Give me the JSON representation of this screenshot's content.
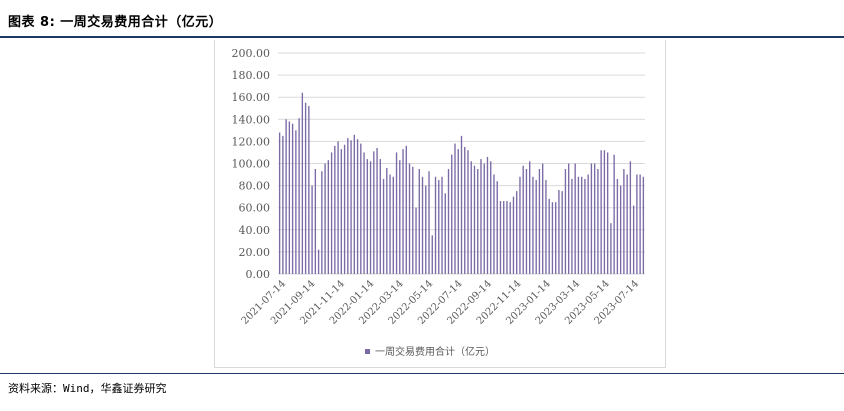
{
  "figure": {
    "title": "图表 8: 一周交易费用合计（亿元）",
    "source": "资料来源：Wind，华鑫证券研究"
  },
  "colors": {
    "bar": "#7b6aa6",
    "rule": "#1f3864",
    "grid": "#d9d9d9",
    "text": "#595959"
  },
  "chart_data": {
    "type": "bar",
    "title": "",
    "xlabel": "",
    "ylabel": "",
    "ylim": [
      0,
      200
    ],
    "y_ticks": [
      "200.00",
      "180.00",
      "160.00",
      "140.00",
      "120.00",
      "100.00",
      "80.00",
      "60.00",
      "40.00",
      "20.00",
      "0.00"
    ],
    "x_tick_labels": [
      "2021-07-14",
      "2021-09-14",
      "2021-11-14",
      "2022-01-14",
      "2022-03-14",
      "2022-05-14",
      "2022-07-14",
      "2022-09-14",
      "2022-11-14",
      "2023-01-14",
      "2023-03-14",
      "2023-05-14",
      "2023-07-14"
    ],
    "legend": "top-bottom",
    "legend_position": "bottom",
    "series": [
      {
        "name": "一周交易费用合计（亿元）",
        "values": [
          128,
          125,
          140,
          138,
          136,
          130,
          141,
          164,
          155,
          152,
          80,
          95,
          22,
          93,
          100,
          103,
          110,
          116,
          120,
          113,
          117,
          123,
          121,
          126,
          122,
          118,
          110,
          104,
          102,
          111,
          114,
          104,
          86,
          96,
          90,
          88,
          110,
          103,
          113,
          116,
          100,
          97,
          60,
          95,
          88,
          80,
          93,
          35,
          88,
          85,
          88,
          73,
          95,
          108,
          118,
          113,
          125,
          115,
          112,
          102,
          98,
          95,
          104,
          100,
          106,
          102,
          90,
          84,
          66,
          66,
          66,
          65,
          70,
          75,
          88,
          98,
          95,
          102,
          88,
          85,
          95,
          100,
          85,
          68,
          65,
          65,
          76,
          75,
          95,
          100,
          86,
          100,
          88,
          88,
          86,
          90,
          100,
          100,
          95,
          112,
          112,
          110,
          46,
          108,
          86,
          80,
          95,
          90,
          102,
          62,
          90,
          90,
          88
        ]
      }
    ]
  }
}
